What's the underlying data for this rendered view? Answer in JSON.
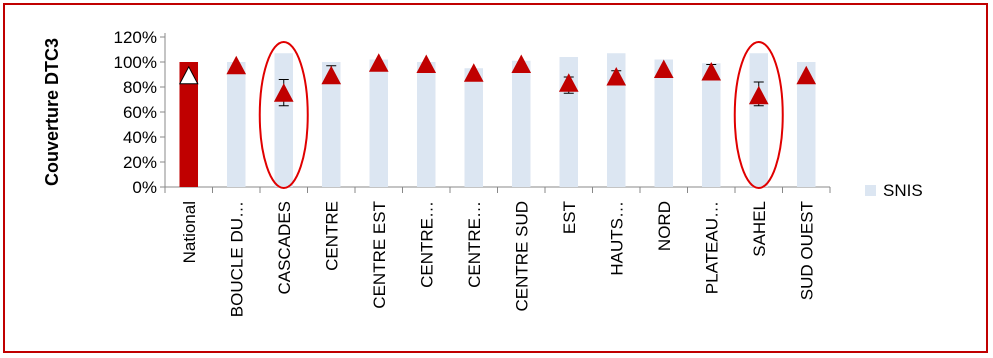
{
  "chart_data": {
    "type": "bar",
    "ylabel": "Couverture DTC3",
    "ylim": [
      0,
      1.2
    ],
    "yticks": [
      0,
      0.2,
      0.4,
      0.6,
      0.8,
      1.0,
      1.2
    ],
    "ytick_labels": [
      "0%",
      "20%",
      "40%",
      "60%",
      "80%",
      "100%",
      "120%"
    ],
    "categories": [
      "National",
      "BOUCLE DU…",
      "CASCADES",
      "CENTRE",
      "CENTRE EST",
      "CENTRE…",
      "CENTRE…",
      "CENTRE SUD",
      "EST",
      "HAUTS…",
      "NORD",
      "PLATEAU…",
      "SAHEL",
      "SUD OUEST"
    ],
    "series": [
      {
        "name": "SNIS",
        "kind": "bar",
        "values": [
          1.0,
          1.0,
          1.07,
          1.0,
          1.02,
          1.0,
          0.95,
          1.01,
          1.04,
          1.07,
          1.02,
          0.99,
          1.07,
          1.0
        ],
        "color": "#dce6f2",
        "highlight": {
          "index": 0,
          "color": "#c00000"
        }
      },
      {
        "kind": "marker",
        "marker": "triangle",
        "values": [
          0.88,
          0.96,
          0.74,
          0.88,
          0.98,
          0.97,
          0.9,
          0.97,
          0.82,
          0.87,
          0.93,
          0.91,
          0.72,
          0.88
        ],
        "error_low": [
          null,
          null,
          0.65,
          0.83,
          null,
          null,
          null,
          null,
          0.75,
          0.83,
          null,
          0.87,
          0.65,
          null
        ],
        "error_high": [
          null,
          null,
          0.86,
          0.97,
          null,
          null,
          null,
          null,
          0.88,
          0.93,
          null,
          0.98,
          0.84,
          null
        ],
        "color": "#c00000",
        "national_color": "#ffffff"
      }
    ],
    "highlighted_categories": [
      "CASCADES",
      "SAHEL"
    ],
    "highlight_color": "#e00000",
    "legend": {
      "position": "right",
      "entries": [
        "SNIS"
      ]
    },
    "grid": false
  }
}
